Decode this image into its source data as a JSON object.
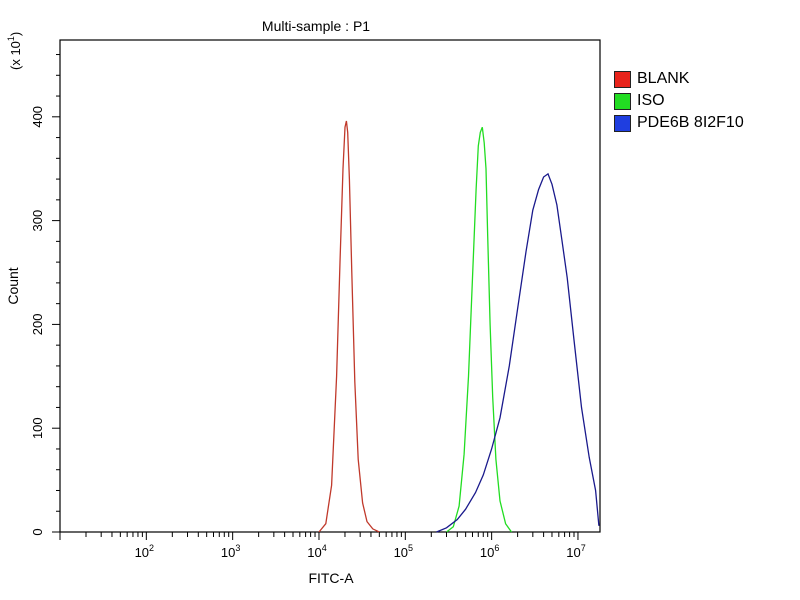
{
  "chart_data": {
    "type": "line",
    "title": "Multi-sample : P1",
    "xlabel": "FITC-A",
    "ylabel": "Count",
    "y_multiplier_label": "(x 10",
    "y_multiplier_exp": "1",
    "xscale": "log",
    "xlim": [
      10,
      18000000
    ],
    "ylim": [
      0,
      474
    ],
    "y_ticks": [
      0,
      100,
      200,
      300,
      400
    ],
    "x_tick_labels": [
      {
        "value": 100,
        "base": "10",
        "exp": "2"
      },
      {
        "value": 1000,
        "base": "10",
        "exp": "3"
      },
      {
        "value": 10000,
        "base": "10",
        "exp": "4"
      },
      {
        "value": 100000,
        "base": "10",
        "exp": "5"
      },
      {
        "value": 1000000,
        "base": "10",
        "exp": "6"
      },
      {
        "value": 10000000,
        "base": "10",
        "exp": "7"
      }
    ],
    "legend_placement": "right",
    "series": [
      {
        "name": "BLANK",
        "color": "#c0392b",
        "swatch": "#e8231b",
        "x": [
          10000,
          12000,
          14000,
          16000,
          17500,
          19000,
          20000,
          20800,
          21500,
          22500,
          24000,
          26000,
          28500,
          32000,
          36000,
          42000,
          50000
        ],
        "y": [
          0,
          8,
          45,
          150,
          260,
          350,
          390,
          396,
          385,
          340,
          250,
          145,
          70,
          28,
          10,
          3,
          0
        ]
      },
      {
        "name": "ISO",
        "color": "#22dd22",
        "swatch": "#22dd22",
        "x": [
          300000,
          360000,
          420000,
          480000,
          540000,
          600000,
          660000,
          700000,
          740000,
          780000,
          820000,
          860000,
          900000,
          960000,
          1030000,
          1120000,
          1250000,
          1450000,
          1700000
        ],
        "y": [
          0,
          5,
          25,
          75,
          150,
          245,
          330,
          372,
          385,
          390,
          375,
          350,
          285,
          200,
          130,
          70,
          30,
          8,
          0
        ]
      },
      {
        "name": "PDE6B 8I2F10",
        "color": "#1a1a8c",
        "swatch": "#1f3ee0",
        "x": [
          230000,
          300000,
          400000,
          500000,
          650000,
          800000,
          1000000,
          1250000,
          1600000,
          2000000,
          2500000,
          3000000,
          3500000,
          4000000,
          4500000,
          5000000,
          5700000,
          6500000,
          7500000,
          9000000,
          11000000,
          13500000,
          16000000,
          17500000
        ],
        "y": [
          0,
          4,
          12,
          22,
          38,
          55,
          80,
          110,
          160,
          215,
          270,
          310,
          330,
          342,
          345,
          335,
          315,
          282,
          245,
          185,
          120,
          72,
          40,
          6
        ]
      }
    ]
  }
}
